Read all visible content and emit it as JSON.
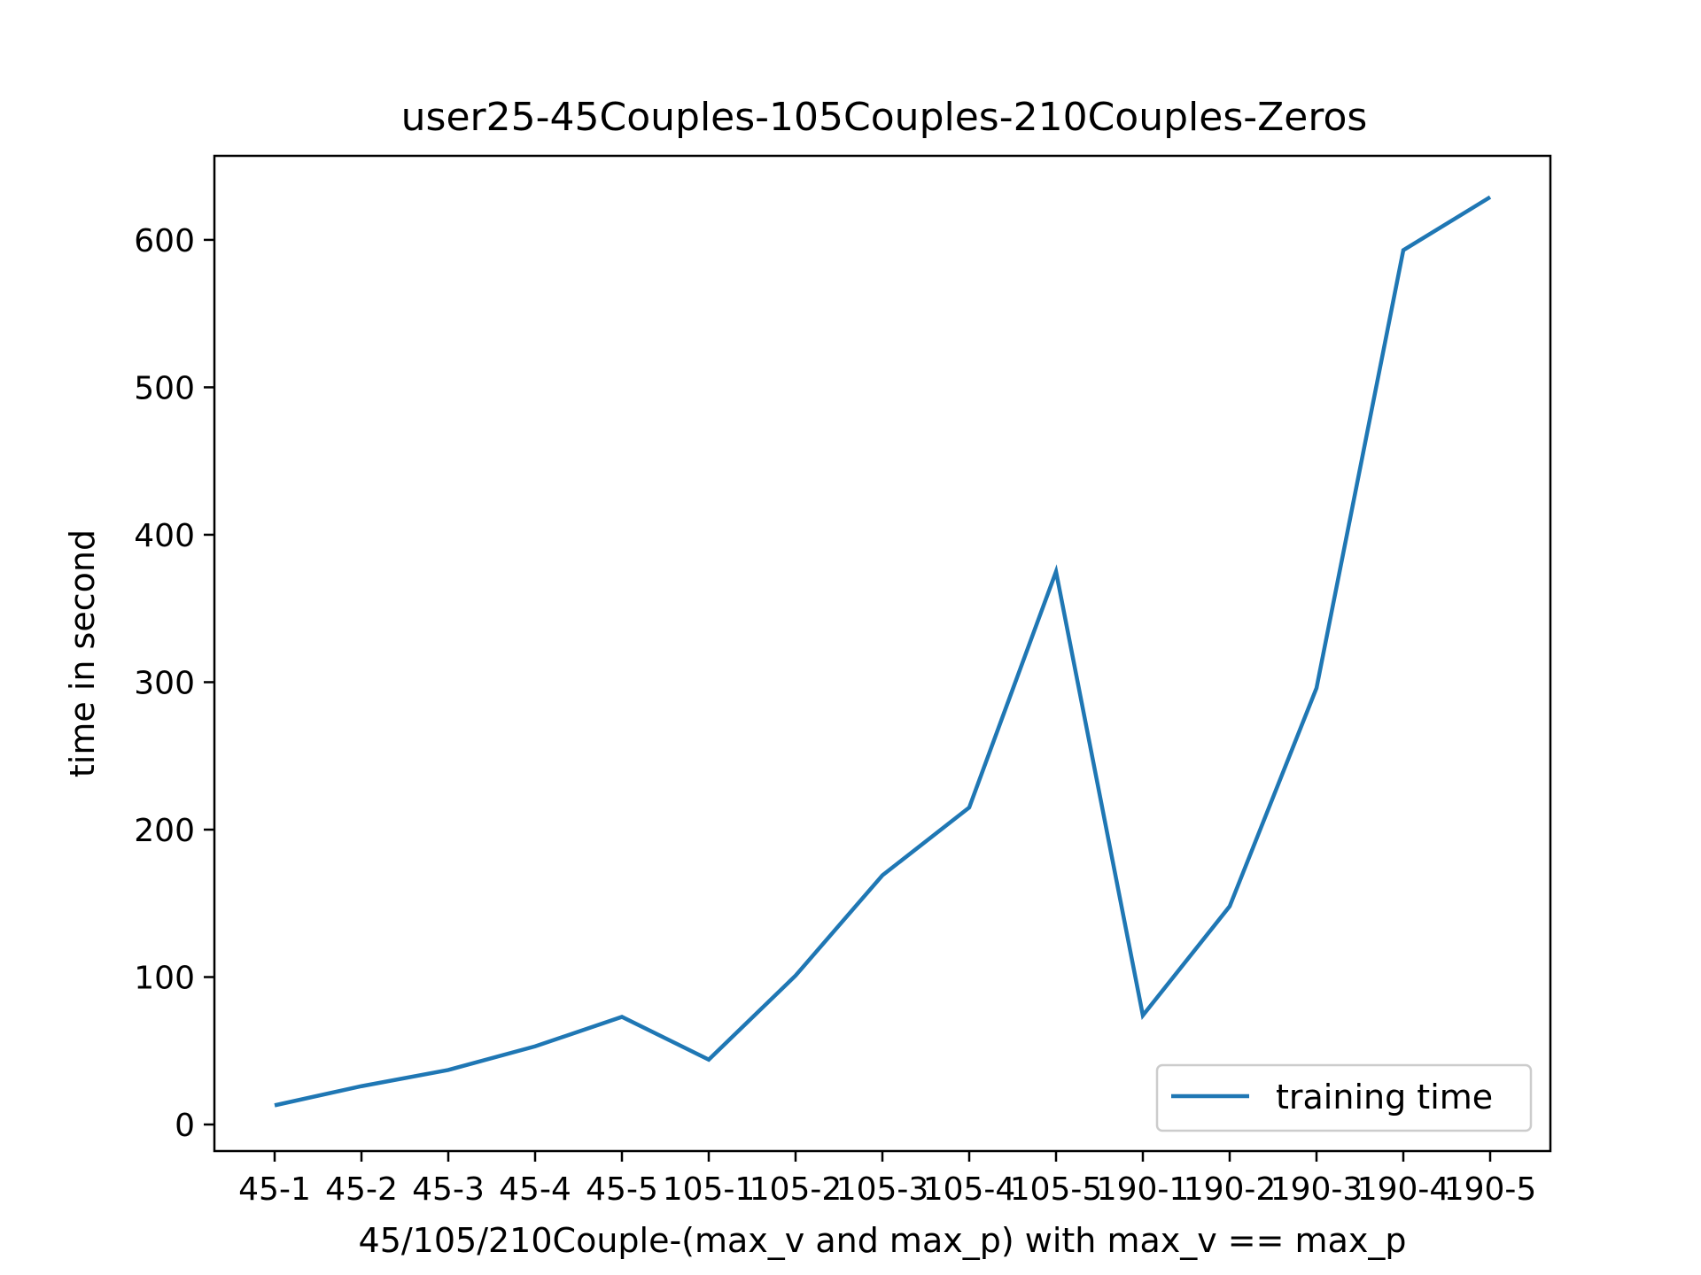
{
  "chart_data": {
    "type": "line",
    "title": "user25-45Couples-105Couples-210Couples-Zeros",
    "xlabel": "45/105/210Couple-(max_v and max_p) with max_v == max_p",
    "ylabel": "time in second",
    "categories": [
      "45-1",
      "45-2",
      "45-3",
      "45-4",
      "45-5",
      "105-1",
      "105-2",
      "105-3",
      "105-4",
      "105-5",
      "190-1",
      "190-2",
      "190-3",
      "190-4",
      "190-5"
    ],
    "series": [
      {
        "name": "training time",
        "color": "#1f77b4",
        "values": [
          13,
          26,
          37,
          53,
          73,
          44,
          101,
          169,
          215,
          375,
          74,
          148,
          296,
          593,
          629
        ]
      }
    ],
    "yticks": [
      0,
      100,
      200,
      300,
      400,
      500,
      600
    ],
    "ylim": [
      -18,
      657
    ],
    "grid": false,
    "legend_position": "lower right"
  }
}
